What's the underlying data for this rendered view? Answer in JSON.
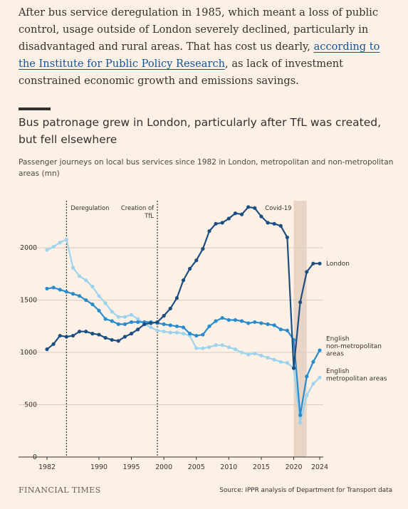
{
  "intro": {
    "text_before": "After bus service deregulation in 1985, which meant a loss of public control, usage outside of London severely declined, particularly in disadvantaged and rural areas. That has cost us dearly, ",
    "link_text": "according to the Institute for Public Policy Research",
    "text_after": ", as lack of investment constrained economic growth and emissions savings."
  },
  "footer": {
    "brand": "FINANCIAL TIMES",
    "source": "Source: IPPR analysis of Department for Transport data"
  },
  "colors": {
    "london": "#1c4e80",
    "non_metropolitan": "#2a8ccc",
    "metropolitan": "#9dd3ec",
    "covid_band": "#e8d5c6",
    "gridline": "#d8cbbd",
    "background": "#fdf1e6"
  },
  "chart_data": {
    "type": "line",
    "title": "Bus patronage grew in London, particularly after TfL was created, but fell elsewhere",
    "subtitle": "Passenger journeys on local bus services since 1982 in London, metropolitan and non-metropolitan areas (mn)",
    "xlim": [
      1982,
      2024
    ],
    "ylim": [
      0,
      2450
    ],
    "yticks": [
      0,
      500,
      1000,
      1500,
      2000
    ],
    "xticks": [
      "1982",
      "1990",
      "1995",
      "2000",
      "2005",
      "2010",
      "2015",
      "2020",
      "2024"
    ],
    "xtick_values": [
      1982,
      1990,
      1995,
      2000,
      2005,
      2010,
      2015,
      2020,
      2024
    ],
    "grid": true,
    "annotations": [
      {
        "label": "Deregulation",
        "x": 1985
      },
      {
        "label": "Creation of TfL",
        "x": 1999
      }
    ],
    "shaded_band": {
      "label": "Covid-19",
      "x": [
        2020,
        2022
      ]
    },
    "series": [
      {
        "name": "London",
        "color": "#1c4e80",
        "x": [
          1982,
          1983,
          1984,
          1985,
          1986,
          1987,
          1988,
          1989,
          1990,
          1991,
          1992,
          1993,
          1994,
          1995,
          1996,
          1997,
          1998,
          1999,
          2000,
          2001,
          2002,
          2003,
          2004,
          2005,
          2006,
          2007,
          2008,
          2009,
          2010,
          2011,
          2012,
          2013,
          2014,
          2015,
          2016,
          2017,
          2018,
          2019,
          2020,
          2021,
          2022,
          2023,
          2024
        ],
        "values": [
          1030,
          1080,
          1160,
          1150,
          1160,
          1200,
          1200,
          1180,
          1170,
          1140,
          1120,
          1110,
          1150,
          1180,
          1220,
          1270,
          1280,
          1290,
          1350,
          1420,
          1520,
          1690,
          1800,
          1880,
          1990,
          2160,
          2230,
          2240,
          2280,
          2330,
          2320,
          2390,
          2380,
          2300,
          2240,
          2230,
          2210,
          2100,
          850,
          1480,
          1770,
          1850,
          1850
        ]
      },
      {
        "name": "English non-metropolitan areas",
        "color": "#2a8ccc",
        "x": [
          1982,
          1983,
          1984,
          1985,
          1986,
          1987,
          1988,
          1989,
          1990,
          1991,
          1992,
          1993,
          1994,
          1995,
          1996,
          1997,
          1998,
          1999,
          2000,
          2001,
          2002,
          2003,
          2004,
          2005,
          2006,
          2007,
          2008,
          2009,
          2010,
          2011,
          2012,
          2013,
          2014,
          2015,
          2016,
          2017,
          2018,
          2019,
          2020,
          2021,
          2022,
          2023,
          2024
        ],
        "values": [
          1610,
          1620,
          1600,
          1580,
          1560,
          1540,
          1500,
          1460,
          1400,
          1320,
          1300,
          1270,
          1270,
          1290,
          1290,
          1290,
          1290,
          1280,
          1270,
          1260,
          1250,
          1240,
          1180,
          1160,
          1170,
          1250,
          1300,
          1330,
          1310,
          1310,
          1300,
          1280,
          1290,
          1280,
          1270,
          1260,
          1220,
          1210,
          1120,
          400,
          770,
          910,
          1020
        ]
      },
      {
        "name": "English metropolitan areas",
        "color": "#9dd3ec",
        "x": [
          1982,
          1983,
          1984,
          1985,
          1986,
          1987,
          1988,
          1989,
          1990,
          1991,
          1992,
          1993,
          1994,
          1995,
          1996,
          1997,
          1998,
          1999,
          2000,
          2001,
          2002,
          2003,
          2004,
          2005,
          2006,
          2007,
          2008,
          2009,
          2010,
          2011,
          2012,
          2013,
          2014,
          2015,
          2016,
          2017,
          2018,
          2019,
          2020,
          2021,
          2022,
          2023,
          2024
        ],
        "values": [
          1980,
          2010,
          2050,
          2080,
          1810,
          1730,
          1690,
          1630,
          1540,
          1470,
          1390,
          1340,
          1340,
          1360,
          1320,
          1270,
          1240,
          1210,
          1200,
          1190,
          1190,
          1180,
          1160,
          1040,
          1040,
          1050,
          1070,
          1070,
          1050,
          1030,
          1000,
          980,
          990,
          970,
          950,
          930,
          910,
          900,
          850,
          330,
          590,
          700,
          760
        ]
      }
    ],
    "series_labels": [
      {
        "series": 0,
        "lines": [
          "London"
        ]
      },
      {
        "series": 1,
        "lines": [
          "English",
          "non-metropolitan",
          "areas"
        ]
      },
      {
        "series": 2,
        "lines": [
          "English",
          "metropolitan areas"
        ]
      }
    ]
  }
}
